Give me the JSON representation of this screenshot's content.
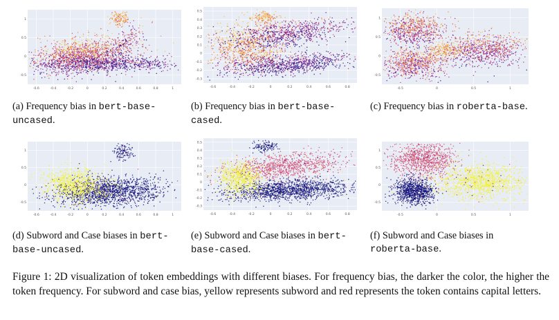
{
  "colors": {
    "plot_bg": "#e8ecf5",
    "grid": "#ffffff",
    "freq_palette": [
      "#1a0a7a",
      "#5c0e9c",
      "#9c2a8c",
      "#d4506a",
      "#f08a3a",
      "#f7c34c"
    ],
    "bias_palette": {
      "none": "#12117a",
      "subword": "#f2f23a",
      "case": "#d14a73"
    }
  },
  "panels": [
    {
      "id": "a",
      "label": "(a)",
      "text": "Frequency bias in ",
      "code1": "bert-base-",
      "code2": "uncased",
      "end": ".",
      "xticks": [
        "-0.6",
        "-0.4",
        "-0.2",
        "0",
        "0.2",
        "0.4",
        "0.6",
        "0.8",
        "1"
      ],
      "yticks": [
        "1",
        "0.5",
        "0",
        "-0.5"
      ]
    },
    {
      "id": "b",
      "label": "(b)",
      "text": "Frequency bias in ",
      "code1": "bert-base-",
      "code2": "cased",
      "end": ".",
      "xticks": [
        "-0.6",
        "-0.4",
        "-0.2",
        "0",
        "0.2",
        "0.4",
        "0.6",
        "0.8"
      ],
      "yticks": [
        "0.5",
        "0.4",
        "0.3",
        "0.2",
        "0.1",
        "0",
        "-0.1",
        "-0.2",
        "-0.3"
      ]
    },
    {
      "id": "c",
      "label": "(c)",
      "text": "Frequency bias in ",
      "code1": "roberta-base",
      "code2": "",
      "end": ".",
      "xticks": [
        "-0.5",
        "0",
        "0.5",
        "1"
      ],
      "yticks": [
        "1",
        "0.5",
        "0",
        "-0.5"
      ]
    },
    {
      "id": "d",
      "label": "(d)",
      "text": "Subword and Case biases in ",
      "code1": "bert-",
      "code2": "base-uncased",
      "end": ".",
      "xticks": [
        "-0.6",
        "-0.4",
        "-0.2",
        "0",
        "0.2",
        "0.4",
        "0.6",
        "0.8",
        "1"
      ],
      "yticks": [
        "1",
        "0.5",
        "0",
        "-0.5"
      ]
    },
    {
      "id": "e",
      "label": "(e)",
      "text": "Subword and Case biases in ",
      "code1": "bert-",
      "code2": "base-cased",
      "end": ".",
      "xticks": [
        "-0.6",
        "-0.4",
        "-0.2",
        "0",
        "0.2",
        "0.4",
        "0.6",
        "0.8"
      ],
      "yticks": [
        "0.5",
        "0.4",
        "0.3",
        "0.2",
        "0.1",
        "0",
        "-0.1",
        "-0.2",
        "-0.3"
      ]
    },
    {
      "id": "f",
      "label": "(f)",
      "text": "Subword and Case biases in ",
      "code1": "roberta-base",
      "code2": "",
      "end": ".",
      "xticks": [
        "-0.5",
        "0",
        "0.5",
        "1"
      ],
      "yticks": [
        "1",
        "0.5",
        "0",
        "-0.5"
      ]
    }
  ],
  "figure_caption": "Figure 1: 2D visualization of token embeddings with different biases. For frequency bias, the darker the color, the higher the token frequency. For subword and case bias, yellow represents subword and red represents the token contains capital letters."
}
